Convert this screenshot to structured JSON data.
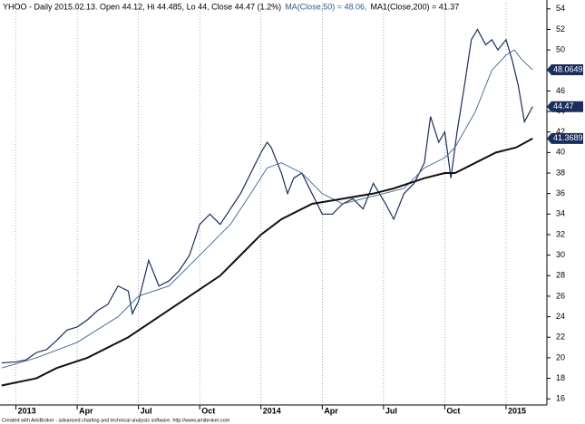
{
  "chart_data": {
    "type": "line",
    "title": "YHOO - Daily 2015.02.13. Open 44.12, Hi 44.485, Lo 44, Close 44.47 (1.2%)",
    "subtitle_parts": [
      "MA(Close,50) = 48.06,",
      "MA1(Close,200) = 41.37"
    ],
    "footer": "Created with AmiBroker - advanced charting and technical analysis software. http://www.amibroker.com",
    "xlim": [
      -0.78,
      26.0
    ],
    "xticks": [
      {
        "value": 0,
        "label": "2013"
      },
      {
        "value": 3,
        "label": "Apr"
      },
      {
        "value": 6,
        "label": "Jul"
      },
      {
        "value": 9,
        "label": "Oct"
      },
      {
        "value": 12,
        "label": "2014"
      },
      {
        "value": 15,
        "label": "Apr"
      },
      {
        "value": 18,
        "label": "Jul"
      },
      {
        "value": 21,
        "label": "Oct"
      },
      {
        "value": 24,
        "label": "2015"
      }
    ],
    "ylim": [
      15.4,
      54.6
    ],
    "yticks": [
      16,
      18,
      20,
      22,
      24,
      26,
      28,
      30,
      32,
      34,
      36,
      38,
      40,
      42,
      44,
      46,
      48,
      50,
      52,
      54
    ],
    "grid": true,
    "series": [
      {
        "name": "YHOO",
        "color": "#1b2d5c",
        "width": 1.2,
        "last_value": 44.47,
        "x": [
          -0.7,
          0,
          0.5,
          1,
          1.5,
          2,
          2.5,
          3,
          3.5,
          4,
          4.5,
          5,
          5.5,
          5.7,
          6,
          6.5,
          7,
          7.5,
          8,
          8.5,
          9,
          9.5,
          10,
          10.5,
          11,
          11.5,
          12,
          12.3,
          12.5,
          13,
          13.3,
          13.6,
          14,
          14.5,
          15,
          15.5,
          16,
          16.5,
          17,
          17.5,
          18.1,
          18.5,
          19,
          19.5,
          20,
          20.3,
          20.7,
          21,
          21.3,
          21.6,
          22,
          22.3,
          22.6,
          23,
          23.3,
          23.6,
          24,
          24.3,
          24.6,
          24.9,
          25.3
        ],
        "values": [
          19.5,
          19.6,
          19.8,
          20.5,
          20.8,
          21.7,
          22.7,
          23.0,
          23.7,
          24.6,
          25.2,
          27.0,
          26.5,
          24.3,
          25.5,
          29.5,
          27.0,
          27.5,
          28.5,
          30.0,
          33.0,
          34.0,
          33.0,
          34.5,
          36.0,
          38.0,
          40.0,
          41.0,
          40.5,
          38.0,
          36.0,
          37.5,
          38.0,
          36.0,
          34.0,
          34.0,
          35.0,
          35.5,
          34.5,
          37.0,
          35.0,
          33.5,
          36.0,
          37.0,
          39.0,
          43.5,
          41.0,
          42.0,
          37.5,
          42.0,
          47.0,
          51.0,
          52.0,
          50.5,
          51.0,
          50.0,
          51.0,
          49.0,
          46.5,
          43.0,
          44.47
        ]
      },
      {
        "name": "MA(Close,50)",
        "color": "#3d6591",
        "width": 0.9,
        "last_value": 48.0649,
        "x": [
          -0.7,
          1,
          3,
          5,
          6,
          7.5,
          9,
          10.5,
          11.5,
          12.3,
          13,
          14,
          15,
          16,
          17,
          18,
          19,
          20,
          21,
          21.5,
          22.5,
          23.3,
          24,
          24.4,
          24.8,
          25.3
        ],
        "values": [
          19.0,
          20.0,
          21.5,
          24.0,
          26.0,
          27.0,
          30.0,
          33.0,
          36.0,
          38.5,
          39.0,
          38.0,
          36.0,
          35.0,
          35.5,
          36.0,
          36.5,
          38.5,
          39.5,
          40.5,
          44.0,
          48.0,
          49.5,
          50.0,
          49.0,
          48.06
        ]
      },
      {
        "name": "MA1(Close,200)",
        "color": "#111111",
        "width": 2,
        "last_value": 41.3689,
        "x": [
          -0.7,
          1,
          2,
          3.5,
          5.5,
          7,
          8.5,
          10,
          11,
          12,
          13,
          14.5,
          16,
          17.5,
          18.5,
          20,
          21,
          21.5,
          22.5,
          23.5,
          24.5,
          25.3
        ],
        "values": [
          17.3,
          18.0,
          19.0,
          20.0,
          22.0,
          24.0,
          26.0,
          28.0,
          30.0,
          32.0,
          33.5,
          35.0,
          35.5,
          36.0,
          36.5,
          37.5,
          38.0,
          38.0,
          39.0,
          40.0,
          40.5,
          41.37
        ]
      }
    ]
  }
}
